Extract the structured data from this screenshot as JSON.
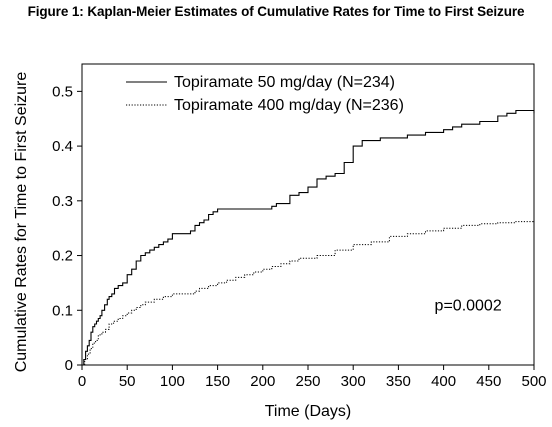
{
  "title": "Figure 1: Kaplan-Meier Estimates of Cumulative Rates for Time to First Seizure",
  "chart_data": {
    "type": "line",
    "title": "Figure 1: Kaplan-Meier Estimates of Cumulative Rates for Time to First Seizure",
    "xlabel": "Time (Days)",
    "ylabel": "Cumulative Rates for Time to First Seizure",
    "xlim": [
      0,
      500
    ],
    "ylim": [
      0,
      0.55
    ],
    "xticks": [
      0,
      50,
      100,
      150,
      200,
      250,
      300,
      350,
      400,
      450,
      500
    ],
    "yticks": [
      0,
      0.1,
      0.2,
      0.3,
      0.4,
      0.5
    ],
    "ytick_labels": [
      "0",
      "0.1",
      "0.2",
      "0.3",
      "0.4",
      "0.5"
    ],
    "grid": false,
    "legend_position": "top-left",
    "step": true,
    "series": [
      {
        "name": "Topiramate 50 mg/day (N=234)",
        "style": "solid",
        "x": [
          0,
          2,
          4,
          6,
          8,
          10,
          12,
          14,
          16,
          18,
          20,
          22,
          25,
          28,
          30,
          33,
          36,
          40,
          45,
          50,
          55,
          60,
          65,
          70,
          75,
          80,
          85,
          90,
          95,
          100,
          110,
          120,
          125,
          130,
          135,
          140,
          145,
          150,
          200,
          210,
          215,
          230,
          240,
          250,
          260,
          270,
          280,
          290,
          300,
          310,
          330,
          360,
          380,
          400,
          410,
          420,
          440,
          460,
          470,
          480,
          490,
          500
        ],
        "y": [
          0,
          0.01,
          0.025,
          0.035,
          0.045,
          0.06,
          0.07,
          0.075,
          0.08,
          0.085,
          0.09,
          0.1,
          0.11,
          0.12,
          0.125,
          0.13,
          0.14,
          0.145,
          0.15,
          0.165,
          0.175,
          0.19,
          0.2,
          0.205,
          0.21,
          0.215,
          0.22,
          0.225,
          0.23,
          0.24,
          0.24,
          0.245,
          0.255,
          0.26,
          0.265,
          0.275,
          0.28,
          0.285,
          0.285,
          0.29,
          0.295,
          0.31,
          0.315,
          0.325,
          0.34,
          0.345,
          0.35,
          0.37,
          0.4,
          0.41,
          0.415,
          0.42,
          0.425,
          0.43,
          0.435,
          0.44,
          0.445,
          0.455,
          0.46,
          0.465,
          0.465,
          0.46
        ]
      },
      {
        "name": "Topiramate 400 mg/day (N=236)",
        "style": "dotted",
        "x": [
          0,
          3,
          6,
          9,
          12,
          15,
          18,
          22,
          26,
          30,
          35,
          40,
          45,
          50,
          55,
          60,
          65,
          70,
          80,
          90,
          100,
          115,
          120,
          125,
          130,
          135,
          140,
          150,
          160,
          170,
          180,
          190,
          200,
          210,
          220,
          230,
          240,
          260,
          280,
          300,
          320,
          340,
          360,
          380,
          400,
          420,
          440,
          460,
          480,
          500
        ],
        "y": [
          0,
          0.01,
          0.02,
          0.03,
          0.04,
          0.045,
          0.055,
          0.06,
          0.065,
          0.075,
          0.08,
          0.085,
          0.09,
          0.095,
          0.1,
          0.105,
          0.11,
          0.115,
          0.12,
          0.125,
          0.13,
          0.13,
          0.13,
          0.135,
          0.14,
          0.14,
          0.145,
          0.15,
          0.155,
          0.16,
          0.165,
          0.17,
          0.175,
          0.18,
          0.185,
          0.19,
          0.195,
          0.2,
          0.21,
          0.22,
          0.225,
          0.235,
          0.24,
          0.245,
          0.25,
          0.255,
          0.258,
          0.26,
          0.262,
          0.263
        ]
      }
    ],
    "annotations": [
      {
        "text": "p=0.0002",
        "x": 390,
        "y": 0.1
      }
    ]
  }
}
